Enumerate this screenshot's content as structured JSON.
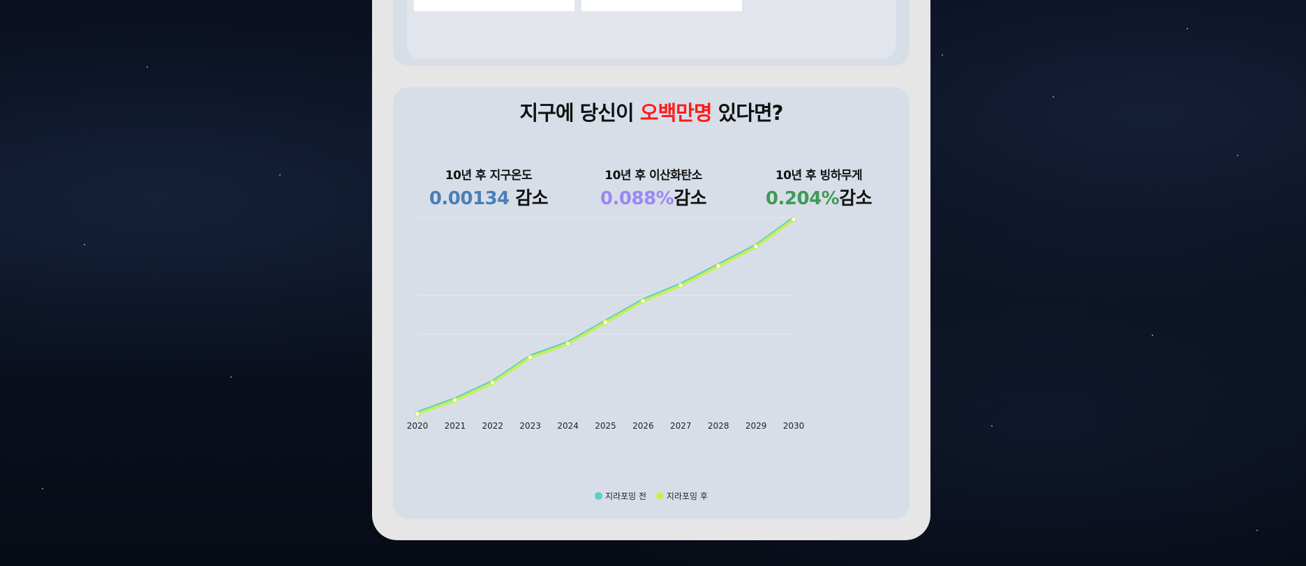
{
  "title": {
    "prefix": "지구에 당신이 ",
    "highlight": "오백만명",
    "suffix": " 있다면?"
  },
  "stats": [
    {
      "label": "10년 후 지구온도",
      "value": "0.00134",
      "unit": " 감소",
      "color": "#4a7fb5"
    },
    {
      "label": "10년 후 이산화탄소",
      "value": "0.088%",
      "unit": "감소",
      "color": "#9b87f5"
    },
    {
      "label": "10년 후 빙하무게",
      "value": "0.204%",
      "unit": "감소",
      "color": "#3f9a55"
    }
  ],
  "colors": {
    "highlight": "#ff1a1a",
    "series_before": "#5ecfc6",
    "series_after": "#c6ef5a"
  },
  "chart_data": {
    "type": "line",
    "x": [
      "2020",
      "2021",
      "2022",
      "2023",
      "2024",
      "2025",
      "2026",
      "2027",
      "2028",
      "2029",
      "2030"
    ],
    "ylim": [
      0,
      100
    ],
    "grid": true,
    "legend": "bottom",
    "series": [
      {
        "name": "지라포밍 전",
        "values": [
          0,
          7,
          16,
          29,
          36,
          47,
          58,
          66,
          76,
          86,
          100
        ]
      },
      {
        "name": "지라포밍 후",
        "values": [
          -1,
          6,
          15,
          28,
          35,
          46,
          57,
          65,
          75,
          85,
          99
        ]
      }
    ]
  }
}
